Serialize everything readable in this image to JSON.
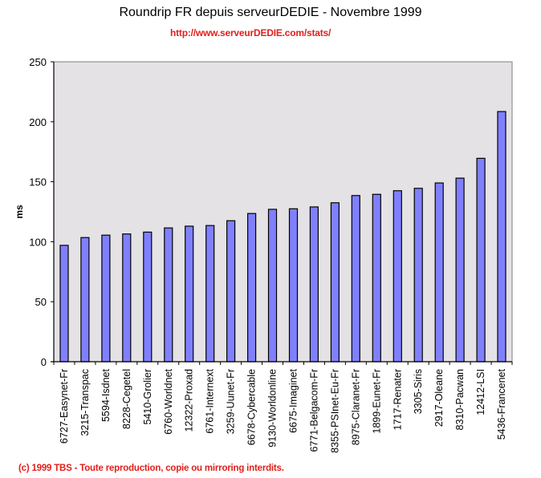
{
  "chart_data": {
    "type": "bar",
    "title": "Roundrip FR depuis serveurDEDIE - Novembre 1999",
    "subtitle": "http://www.serveurDEDIE.com/stats/",
    "footer": "(c) 1999 TBS - Toute reproduction, copie ou mirroring interdits.",
    "xlabel": "",
    "ylabel": "ms",
    "ylim": [
      0,
      250
    ],
    "yticks": [
      "0",
      "50",
      "100",
      "150",
      "200",
      "250"
    ],
    "grid": false,
    "categories": [
      "6727-Easynet-Fr",
      "3215-Transpac",
      "5594-Isdnet",
      "8228-Cegetel",
      "5410-Grolier",
      "6760-Worldnet",
      "12322-Proxad",
      "6761-Internext",
      "3259-Uunet-Fr",
      "6678-Cybercable",
      "9130-Worldonline",
      "6675-Imaginet",
      "6771-Belgacom-Fr",
      "8355-PSInet-Eu-Fr",
      "8975-Claranet-Fr",
      "1899-Eunet-Fr",
      "1717-Renater",
      "3305-Siris",
      "2917-Oleane",
      "8310-Pacwan",
      "12412-LSI",
      "5436-Francenet"
    ],
    "values": [
      97,
      103.5,
      105.5,
      106.5,
      108,
      111.5,
      113,
      113.5,
      117.5,
      123.5,
      127,
      127.5,
      129,
      132.5,
      138.5,
      139.5,
      142.5,
      144.5,
      149,
      153,
      169.5,
      208.5
    ],
    "colors": {
      "bar_fill": "#8080ff",
      "bar_stroke": "#000000",
      "plot_bg": "#e4e2e4",
      "plot_border": "#808080",
      "accent_text": "#e0201c"
    }
  }
}
